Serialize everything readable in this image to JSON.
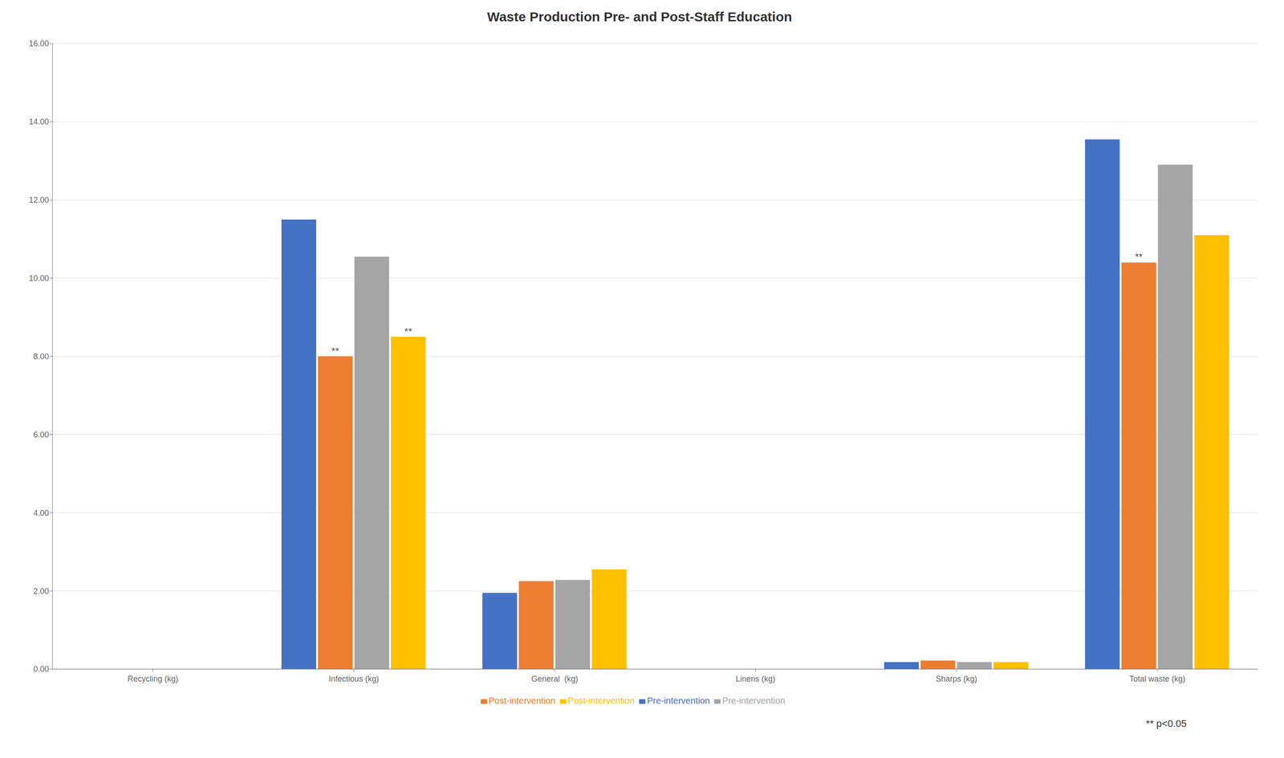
{
  "chart_data": {
    "type": "bar",
    "title": "Waste Production Pre- and Post-Staff Education",
    "categories": [
      "Recycling (kg)",
      "Infectious (kg)",
      "General  (kg)",
      "Linens (kg)",
      "Sharps (kg)",
      "Total waste (kg)"
    ],
    "series": [
      {
        "name": "Pre-intervention",
        "color": "#4472C4",
        "values": [
          0,
          11.5,
          1.95,
          0,
          0.18,
          13.55
        ]
      },
      {
        "name": "Post-intervention",
        "color": "#ED7D31",
        "values": [
          0,
          8.0,
          2.25,
          0,
          0.22,
          10.4
        ]
      },
      {
        "name": "Pre-intervention",
        "color": "#A5A5A5",
        "values": [
          0,
          10.55,
          2.28,
          0,
          0.18,
          12.9
        ]
      },
      {
        "name": "Post-intervention",
        "color": "#FFC000",
        "values": [
          0,
          8.5,
          2.55,
          0,
          0.18,
          11.1
        ]
      }
    ],
    "ylim": [
      0,
      16.0
    ],
    "yticks": [
      {
        "value": 0.0,
        "label": "0.00"
      },
      {
        "value": 2.0,
        "label": "2.00"
      },
      {
        "value": 4.0,
        "label": "4.00"
      },
      {
        "value": 6.0,
        "label": "6.00"
      },
      {
        "value": 8.0,
        "label": "8.00"
      },
      {
        "value": 10.0,
        "label": "10.00"
      },
      {
        "value": 12.0,
        "label": "12.00"
      },
      {
        "value": 14.0,
        "label": "14.00"
      },
      {
        "value": 16.0,
        "label": "16.00"
      }
    ],
    "grid": true,
    "legend": "bottom",
    "annotations": [
      {
        "text": "**",
        "category": "Infectious (kg)",
        "series": 1
      },
      {
        "text": "**",
        "category": "Infectious (kg)",
        "series": 3
      },
      {
        "text": "**",
        "category": "Total waste (kg)",
        "series": 1
      }
    ],
    "note": "** p<0.05"
  }
}
